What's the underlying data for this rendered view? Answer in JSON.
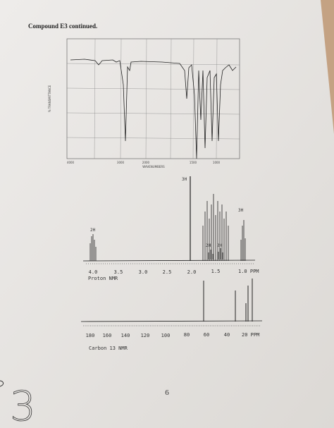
{
  "header": {
    "title": "Compound E3 continued."
  },
  "ir": {
    "x_label": "WAVENUMBERS",
    "y_label": "% TRANSMITTANCE",
    "x_ticks": [
      "4000",
      "3000",
      "2000",
      "1500",
      "1000"
    ]
  },
  "proton_nmr": {
    "integrations": [
      "3H",
      "2H",
      "3H",
      "2H",
      "2H"
    ],
    "ticks": [
      "4.0",
      "3.5",
      "3.0",
      "2.5",
      "2.0",
      "1.5",
      "1.0 PPM"
    ],
    "caption": "Proton NMR"
  },
  "carbon_nmr": {
    "ticks": [
      "180",
      "160",
      "140",
      "120",
      "100",
      "80",
      "60",
      "40",
      "20 PPM"
    ],
    "caption": "Carbon 13 NMR"
  },
  "page_number": "6",
  "handwriting": "3"
}
